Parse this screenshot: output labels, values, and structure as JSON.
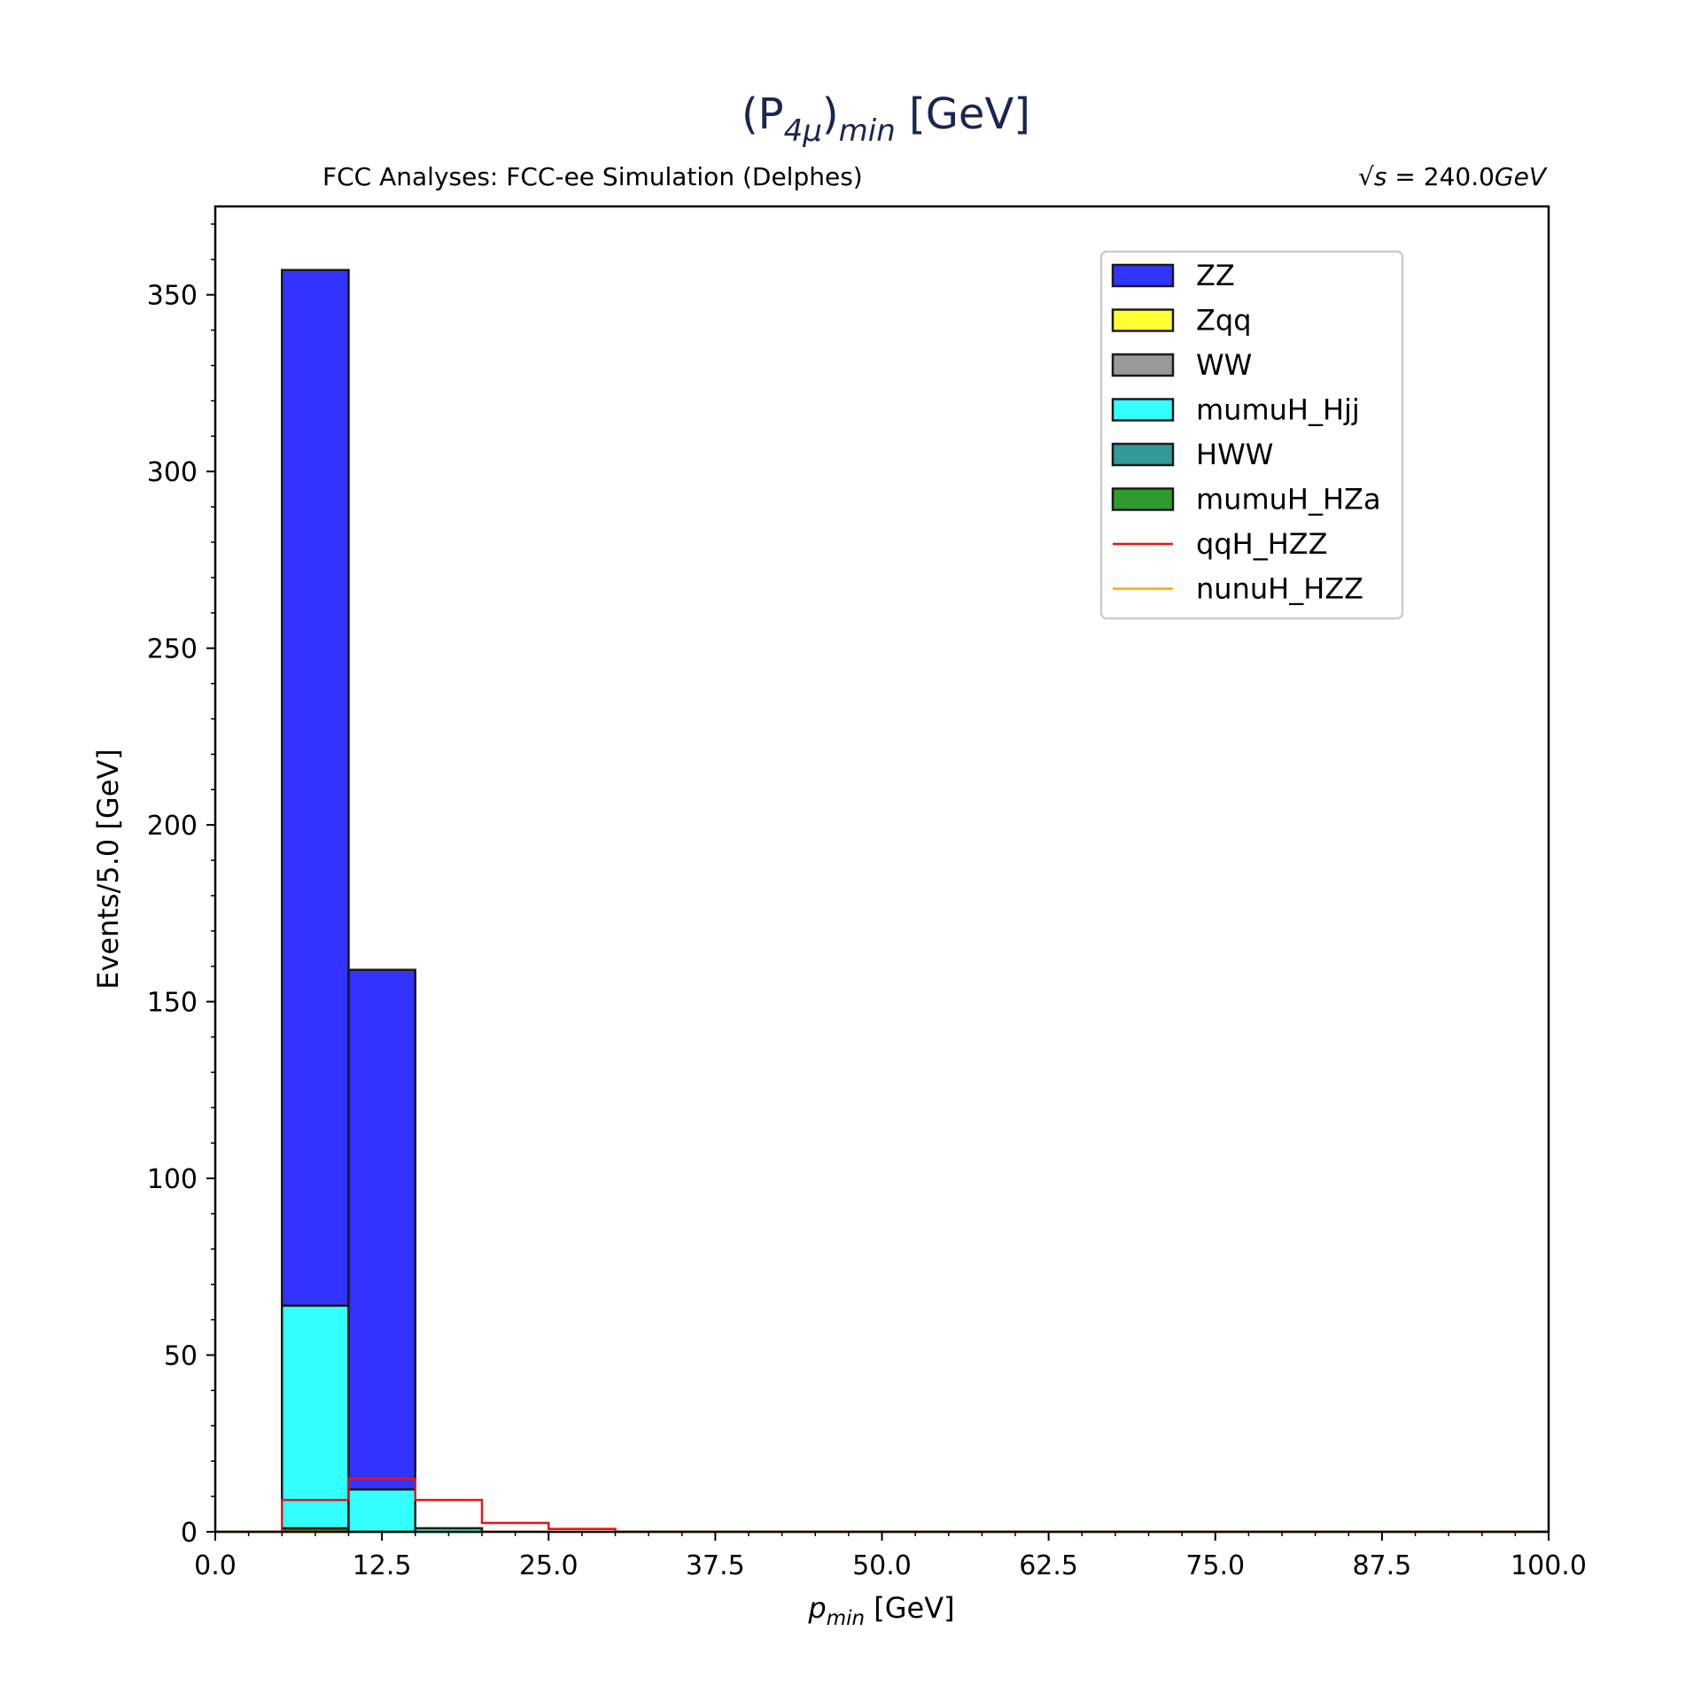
{
  "chart_data": {
    "type": "bar",
    "title": "(P",
    "title_sub1": "4μ",
    "title_mid": ")",
    "title_sub2": "min",
    "title_unit": " [GeV]",
    "subtitle_left": "FCC Analyses: FCC-ee Simulation (Delphes)",
    "subtitle_right_prefix": "√",
    "subtitle_right_s": "s",
    "subtitle_right_eq": " = 240.0",
    "subtitle_right_unit": "GeV",
    "xlabel_sym": "p",
    "xlabel_sub": "min",
    "xlabel_unit": " [GeV]",
    "ylabel": "Events/5.0 [GeV]",
    "xlim": [
      0,
      100
    ],
    "ylim": [
      0,
      375
    ],
    "xticks": [
      "0.0",
      "12.5",
      "25.0",
      "37.5",
      "50.0",
      "62.5",
      "75.0",
      "87.5",
      "100.0"
    ],
    "xtick_values": [
      0,
      12.5,
      25,
      37.5,
      50,
      62.5,
      75,
      87.5,
      100
    ],
    "yticks": [
      "0",
      "50",
      "100",
      "150",
      "200",
      "250",
      "300",
      "350"
    ],
    "ytick_values": [
      0,
      50,
      100,
      150,
      200,
      250,
      300,
      350
    ],
    "bin_width": 5.0,
    "bin_edges": [
      0,
      5,
      10,
      15,
      20,
      25,
      30,
      35,
      40
    ],
    "stacked_series": [
      {
        "name": "mumuH_HZa",
        "color": "#2f9a2f",
        "values": [
          0,
          1,
          0,
          0,
          0,
          0,
          0,
          0
        ]
      },
      {
        "name": "HWW",
        "color": "#339999",
        "values": [
          0,
          0,
          0,
          0,
          0,
          0,
          0,
          0
        ]
      },
      {
        "name": "mumuH_Hjj",
        "color": "#33ffff",
        "values": [
          0,
          63,
          12,
          1,
          0,
          0,
          0,
          0
        ]
      },
      {
        "name": "WW",
        "color": "#999999",
        "values": [
          0,
          0,
          0,
          0,
          0,
          0,
          0,
          0
        ]
      },
      {
        "name": "Zqq",
        "color": "#ffff33",
        "values": [
          0,
          0,
          0,
          0,
          0,
          0,
          0,
          0
        ]
      },
      {
        "name": "ZZ",
        "color": "#3333ff",
        "values": [
          0,
          293,
          147,
          0,
          0,
          0,
          0,
          0
        ]
      }
    ],
    "line_series": [
      {
        "name": "qqH_HZZ",
        "color": "#ee1111",
        "values": [
          0,
          9,
          15,
          9,
          2.5,
          0.8,
          0,
          0
        ]
      },
      {
        "name": "nunuH_HZZ",
        "color": "#ffa500",
        "values": [
          0,
          0,
          0,
          0,
          0,
          0,
          0,
          0
        ]
      }
    ],
    "legend": [
      {
        "name": "ZZ",
        "color": "#3333ff",
        "kind": "patch"
      },
      {
        "name": "Zqq",
        "color": "#ffff33",
        "kind": "patch"
      },
      {
        "name": "WW",
        "color": "#999999",
        "kind": "patch"
      },
      {
        "name": "mumuH_Hjj",
        "color": "#33ffff",
        "kind": "patch"
      },
      {
        "name": "HWW",
        "color": "#339999",
        "kind": "patch"
      },
      {
        "name": "mumuH_HZa",
        "color": "#2f9a2f",
        "kind": "patch"
      },
      {
        "name": "qqH_HZZ",
        "color": "#ee1111",
        "kind": "line"
      },
      {
        "name": "nunuH_HZZ",
        "color": "#ffa500",
        "kind": "line"
      }
    ],
    "legend_position": "top-right",
    "grid": false
  }
}
